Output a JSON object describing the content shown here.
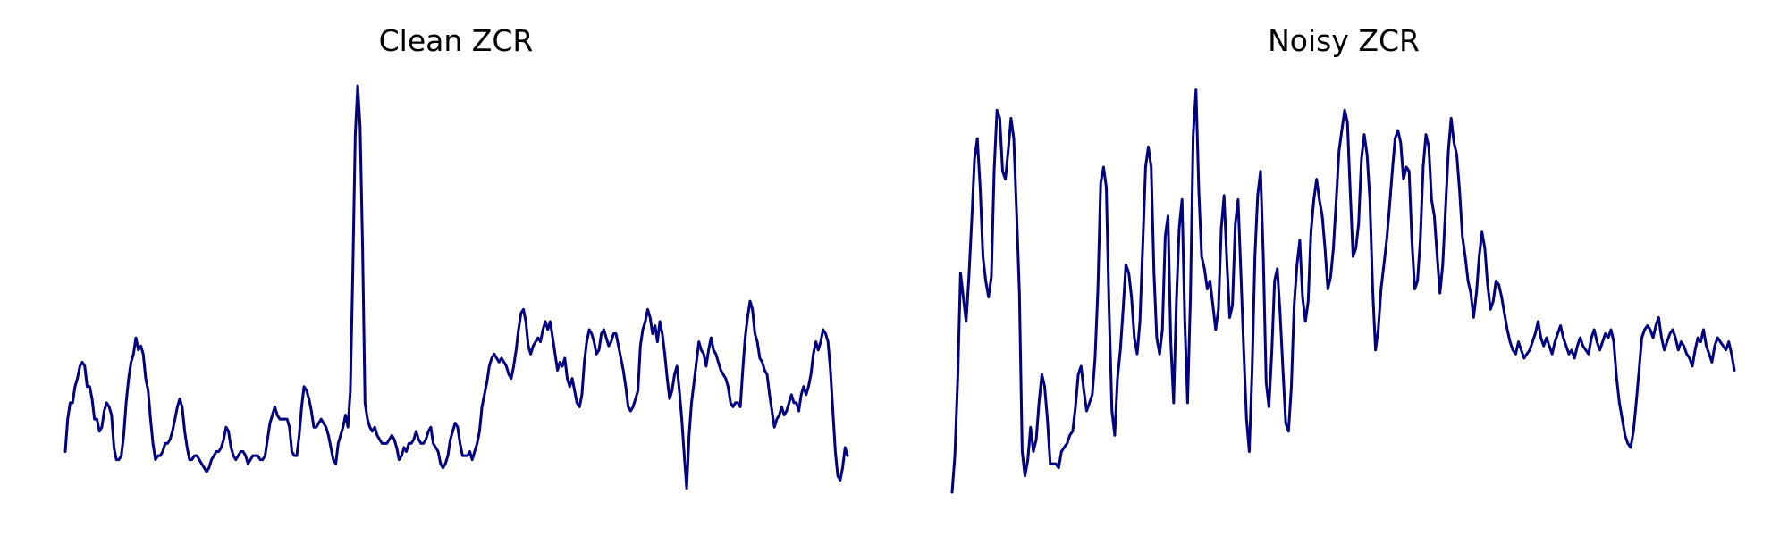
{
  "chart_data": [
    {
      "type": "line",
      "title": "Clean ZCR",
      "xlabel": "",
      "ylabel": "",
      "axes_visible": false,
      "grid": false,
      "line_color": "#000080",
      "ylim": [
        0,
        1
      ],
      "values": [
        0.1,
        0.18,
        0.22,
        0.22,
        0.26,
        0.28,
        0.31,
        0.32,
        0.31,
        0.26,
        0.26,
        0.23,
        0.18,
        0.18,
        0.15,
        0.16,
        0.2,
        0.22,
        0.21,
        0.19,
        0.11,
        0.08,
        0.08,
        0.09,
        0.14,
        0.22,
        0.28,
        0.32,
        0.34,
        0.38,
        0.35,
        0.36,
        0.34,
        0.28,
        0.25,
        0.18,
        0.12,
        0.08,
        0.09,
        0.09,
        0.1,
        0.12,
        0.12,
        0.13,
        0.15,
        0.18,
        0.21,
        0.23,
        0.21,
        0.15,
        0.11,
        0.08,
        0.08,
        0.09,
        0.09,
        0.08,
        0.07,
        0.06,
        0.05,
        0.06,
        0.08,
        0.09,
        0.1,
        0.1,
        0.11,
        0.13,
        0.16,
        0.15,
        0.11,
        0.09,
        0.08,
        0.09,
        0.1,
        0.1,
        0.09,
        0.07,
        0.08,
        0.09,
        0.09,
        0.09,
        0.08,
        0.08,
        0.09,
        0.13,
        0.17,
        0.19,
        0.21,
        0.19,
        0.18,
        0.18,
        0.18,
        0.18,
        0.16,
        0.1,
        0.09,
        0.09,
        0.14,
        0.21,
        0.26,
        0.25,
        0.23,
        0.2,
        0.16,
        0.16,
        0.17,
        0.18,
        0.17,
        0.16,
        0.14,
        0.11,
        0.08,
        0.07,
        0.12,
        0.14,
        0.16,
        0.19,
        0.16,
        0.25,
        0.55,
        0.88,
        1.0,
        0.9,
        0.6,
        0.22,
        0.18,
        0.16,
        0.15,
        0.16,
        0.14,
        0.13,
        0.12,
        0.12,
        0.12,
        0.13,
        0.14,
        0.13,
        0.11,
        0.08,
        0.09,
        0.11,
        0.1,
        0.12,
        0.12,
        0.13,
        0.15,
        0.13,
        0.12,
        0.12,
        0.13,
        0.15,
        0.16,
        0.12,
        0.11,
        0.1,
        0.07,
        0.06,
        0.07,
        0.09,
        0.13,
        0.15,
        0.17,
        0.16,
        0.12,
        0.09,
        0.09,
        0.09,
        0.1,
        0.08,
        0.1,
        0.12,
        0.15,
        0.21,
        0.24,
        0.27,
        0.31,
        0.33,
        0.34,
        0.33,
        0.32,
        0.33,
        0.32,
        0.31,
        0.29,
        0.28,
        0.31,
        0.35,
        0.4,
        0.44,
        0.45,
        0.42,
        0.36,
        0.34,
        0.36,
        0.37,
        0.38,
        0.37,
        0.4,
        0.42,
        0.4,
        0.42,
        0.38,
        0.34,
        0.3,
        0.32,
        0.31,
        0.33,
        0.28,
        0.26,
        0.28,
        0.25,
        0.22,
        0.21,
        0.24,
        0.32,
        0.37,
        0.4,
        0.39,
        0.37,
        0.34,
        0.35,
        0.39,
        0.4,
        0.38,
        0.36,
        0.37,
        0.39,
        0.39,
        0.36,
        0.33,
        0.3,
        0.26,
        0.21,
        0.2,
        0.21,
        0.23,
        0.25,
        0.36,
        0.4,
        0.42,
        0.45,
        0.43,
        0.39,
        0.41,
        0.37,
        0.42,
        0.39,
        0.34,
        0.28,
        0.23,
        0.25,
        0.29,
        0.31,
        0.25,
        0.18,
        0.09,
        0.01,
        0.14,
        0.22,
        0.27,
        0.32,
        0.37,
        0.35,
        0.34,
        0.31,
        0.35,
        0.38,
        0.35,
        0.34,
        0.32,
        0.3,
        0.29,
        0.28,
        0.26,
        0.22,
        0.21,
        0.22,
        0.22,
        0.21,
        0.3,
        0.38,
        0.43,
        0.47,
        0.45,
        0.39,
        0.37,
        0.33,
        0.32,
        0.3,
        0.29,
        0.24,
        0.2,
        0.16,
        0.18,
        0.19,
        0.21,
        0.19,
        0.2,
        0.22,
        0.24,
        0.22,
        0.22,
        0.2,
        0.24,
        0.26,
        0.24,
        0.26,
        0.29,
        0.34,
        0.37,
        0.35,
        0.37,
        0.4,
        0.39,
        0.37,
        0.3,
        0.2,
        0.1,
        0.04,
        0.03,
        0.06,
        0.11,
        0.09
      ]
    },
    {
      "type": "line",
      "title": "Noisy ZCR",
      "xlabel": "",
      "ylabel": "",
      "axes_visible": false,
      "grid": false,
      "line_color": "#000080",
      "ylim": [
        0,
        1
      ],
      "values": [
        0.0,
        0.09,
        0.28,
        0.54,
        0.48,
        0.42,
        0.53,
        0.67,
        0.82,
        0.87,
        0.75,
        0.58,
        0.52,
        0.48,
        0.53,
        0.79,
        0.94,
        0.92,
        0.79,
        0.77,
        0.84,
        0.92,
        0.87,
        0.69,
        0.49,
        0.1,
        0.04,
        0.08,
        0.16,
        0.1,
        0.13,
        0.22,
        0.29,
        0.26,
        0.18,
        0.07,
        0.07,
        0.07,
        0.06,
        0.1,
        0.11,
        0.12,
        0.14,
        0.15,
        0.21,
        0.29,
        0.31,
        0.25,
        0.2,
        0.22,
        0.24,
        0.33,
        0.5,
        0.76,
        0.8,
        0.75,
        0.45,
        0.2,
        0.14,
        0.28,
        0.35,
        0.45,
        0.56,
        0.54,
        0.48,
        0.38,
        0.34,
        0.42,
        0.61,
        0.8,
        0.85,
        0.8,
        0.54,
        0.38,
        0.34,
        0.4,
        0.63,
        0.68,
        0.37,
        0.22,
        0.47,
        0.65,
        0.72,
        0.42,
        0.22,
        0.48,
        0.88,
        0.99,
        0.74,
        0.58,
        0.55,
        0.5,
        0.52,
        0.46,
        0.4,
        0.45,
        0.65,
        0.73,
        0.57,
        0.43,
        0.46,
        0.66,
        0.72,
        0.54,
        0.35,
        0.18,
        0.1,
        0.3,
        0.58,
        0.73,
        0.79,
        0.58,
        0.27,
        0.21,
        0.34,
        0.52,
        0.55,
        0.44,
        0.3,
        0.17,
        0.15,
        0.26,
        0.46,
        0.56,
        0.62,
        0.48,
        0.42,
        0.47,
        0.64,
        0.72,
        0.77,
        0.72,
        0.68,
        0.6,
        0.5,
        0.53,
        0.6,
        0.72,
        0.84,
        0.89,
        0.94,
        0.91,
        0.74,
        0.58,
        0.6,
        0.66,
        0.82,
        0.88,
        0.83,
        0.72,
        0.5,
        0.35,
        0.4,
        0.5,
        0.56,
        0.62,
        0.7,
        0.79,
        0.87,
        0.89,
        0.86,
        0.77,
        0.8,
        0.79,
        0.62,
        0.5,
        0.52,
        0.62,
        0.8,
        0.88,
        0.85,
        0.72,
        0.68,
        0.58,
        0.49,
        0.56,
        0.7,
        0.84,
        0.92,
        0.86,
        0.83,
        0.74,
        0.63,
        0.58,
        0.52,
        0.49,
        0.43,
        0.49,
        0.58,
        0.64,
        0.6,
        0.51,
        0.45,
        0.47,
        0.52,
        0.51,
        0.48,
        0.44,
        0.4,
        0.37,
        0.35,
        0.34,
        0.37,
        0.35,
        0.33,
        0.34,
        0.35,
        0.37,
        0.39,
        0.42,
        0.38,
        0.36,
        0.38,
        0.36,
        0.34,
        0.37,
        0.39,
        0.41,
        0.38,
        0.36,
        0.34,
        0.35,
        0.33,
        0.36,
        0.38,
        0.36,
        0.35,
        0.34,
        0.38,
        0.4,
        0.37,
        0.35,
        0.37,
        0.39,
        0.38,
        0.4,
        0.37,
        0.28,
        0.22,
        0.18,
        0.14,
        0.12,
        0.11,
        0.15,
        0.22,
        0.3,
        0.38,
        0.4,
        0.41,
        0.4,
        0.38,
        0.41,
        0.43,
        0.38,
        0.35,
        0.37,
        0.39,
        0.4,
        0.38,
        0.35,
        0.37,
        0.36,
        0.34,
        0.33,
        0.31,
        0.35,
        0.38,
        0.37,
        0.4,
        0.36,
        0.34,
        0.32,
        0.36,
        0.38,
        0.37,
        0.36,
        0.35,
        0.37,
        0.34,
        0.3
      ]
    }
  ]
}
